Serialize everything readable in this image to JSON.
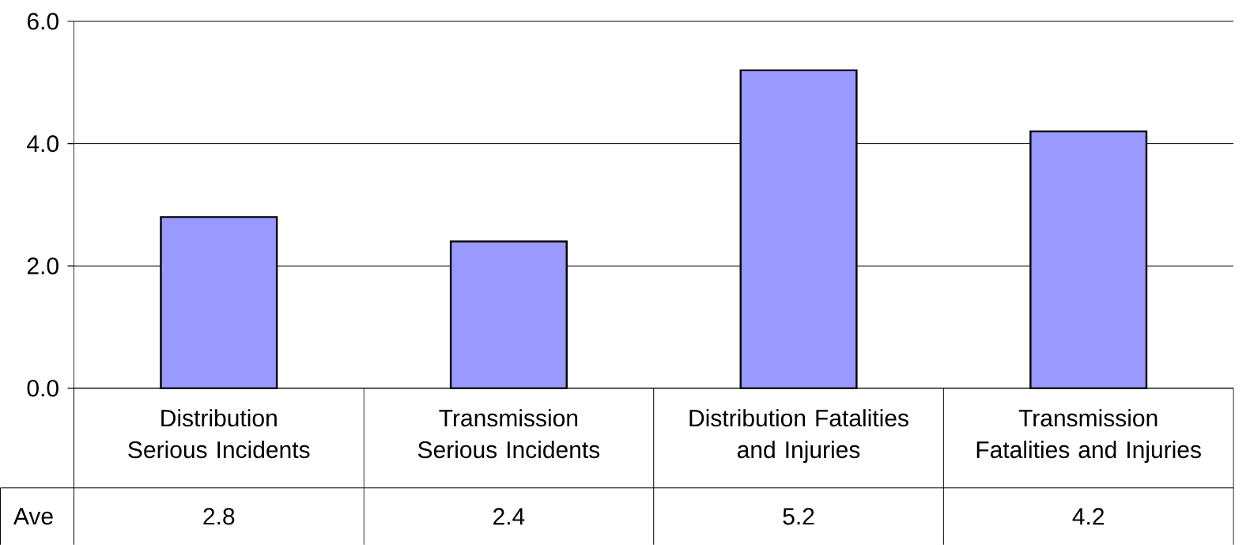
{
  "chart_data": {
    "type": "bar",
    "categories": [
      "Distribution Serious Incidents",
      "Transmission Serious Incidents",
      "Distribution Fatalities and Injuries",
      "Transmission Fatalities and Injuries"
    ],
    "series": [
      {
        "name": "Ave",
        "color": "#9999ff",
        "values": [
          2.8,
          2.4,
          5.2,
          4.2
        ]
      }
    ],
    "ylim": [
      0,
      6
    ],
    "yticks": [
      {
        "value": 0,
        "label": "0.0"
      },
      {
        "value": 2,
        "label": "2.0"
      },
      {
        "value": 4,
        "label": "4.0"
      },
      {
        "value": 6,
        "label": "6.0"
      }
    ],
    "grid": "y",
    "data_labels": true
  }
}
